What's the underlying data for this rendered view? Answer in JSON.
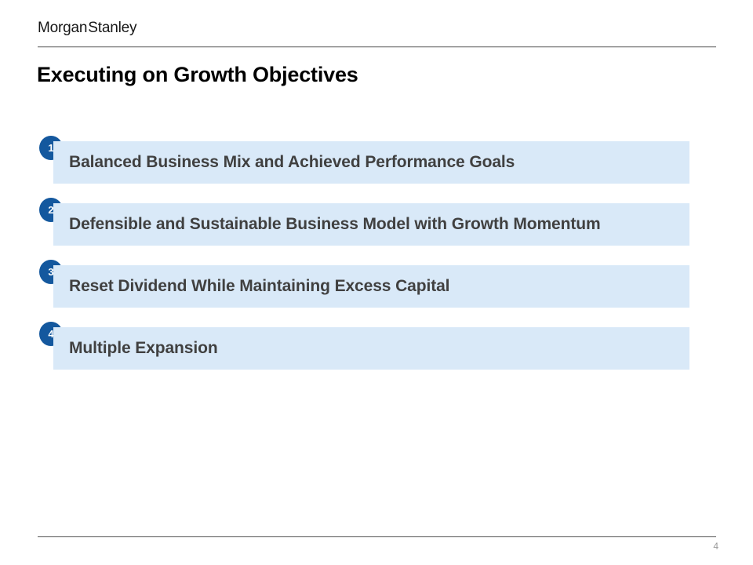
{
  "brand": {
    "logo": "Morgan Stanley"
  },
  "slide": {
    "title": "Executing on Growth Objectives",
    "items": [
      {
        "number": "1",
        "label": "Balanced Business Mix and Achieved Performance Goals"
      },
      {
        "number": "2",
        "label": "Defensible and Sustainable Business Model with Growth Momentum"
      },
      {
        "number": "3",
        "label": "Reset Dividend While Maintaining Excess Capital"
      },
      {
        "number": "4",
        "label": "Multiple Expansion"
      }
    ],
    "page_number": "4"
  },
  "colors": {
    "badge_blue": "#14589e",
    "bar_background": "#d9e9f8",
    "bar_text": "#404040",
    "divider_gray": "#878787",
    "page_number_gray": "#999999"
  }
}
